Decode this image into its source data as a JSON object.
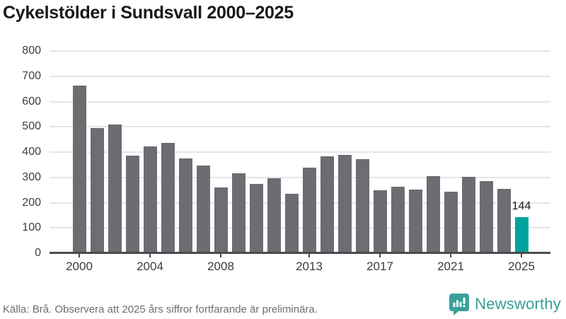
{
  "title": "Cykelstölder i Sundsvall 2000–2025",
  "footer": {
    "source": "Källa: Brå. Observera att 2025 års siffror fortfarande är preliminära.",
    "brand": "Newsworthy"
  },
  "colors": {
    "bar": "#6e6b73",
    "highlight": "#00a39b",
    "grid": "#e5e5e5",
    "axis": "#4c4c4c",
    "brand": "#38a09a"
  },
  "chart_data": {
    "type": "bar",
    "title": "Cykelstölder i Sundsvall 2000–2025",
    "categories": [
      2000,
      2001,
      2002,
      2003,
      2004,
      2005,
      2006,
      2007,
      2008,
      2009,
      2010,
      2011,
      2012,
      2013,
      2014,
      2015,
      2016,
      2017,
      2018,
      2019,
      2020,
      2021,
      2022,
      2023,
      2024,
      2025
    ],
    "values": [
      662,
      495,
      508,
      386,
      422,
      436,
      374,
      348,
      261,
      317,
      275,
      297,
      236,
      339,
      382,
      390,
      372,
      250,
      262,
      252,
      304,
      244,
      303,
      285,
      255,
      144
    ],
    "xlabel": "",
    "ylabel": "",
    "ylim": [
      0,
      800
    ],
    "ytick_step": 100,
    "xtick_labels": [
      2000,
      2004,
      2008,
      2013,
      2017,
      2021,
      2025
    ],
    "grid": true,
    "legend": "none",
    "highlight_index": 25,
    "highlight_label": "144"
  }
}
